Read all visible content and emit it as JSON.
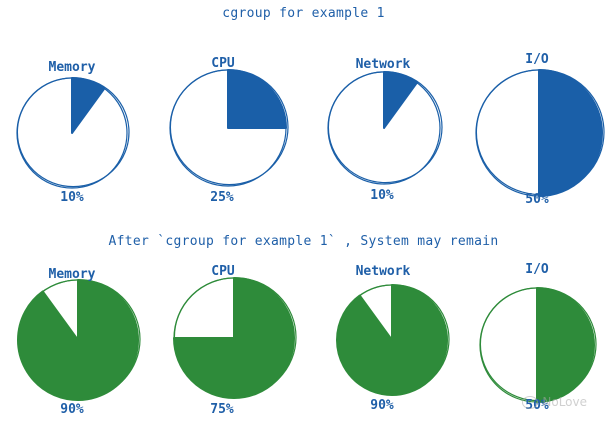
{
  "chart_data": [
    {
      "type": "pie",
      "title": "cgroup for example 1",
      "categories": [
        "Memory",
        "CPU",
        "Network",
        "I/O"
      ],
      "values": [
        10,
        25,
        10,
        50
      ],
      "value_labels": [
        "10%",
        "25%",
        "10%",
        "50%"
      ],
      "color": "#1a5fa8",
      "text_color": "#1f5fa8"
    },
    {
      "type": "pie",
      "title": "After `cgroup for example 1` , System may remain",
      "categories": [
        "Memory",
        "CPU",
        "Network",
        "I/O"
      ],
      "values": [
        90,
        75,
        90,
        50
      ],
      "value_labels": [
        "90%",
        "75%",
        "90%",
        "50%"
      ],
      "color": "#2e8b3a",
      "text_color": "#2e7d35"
    }
  ],
  "watermark": {
    "text": "NoLove"
  }
}
